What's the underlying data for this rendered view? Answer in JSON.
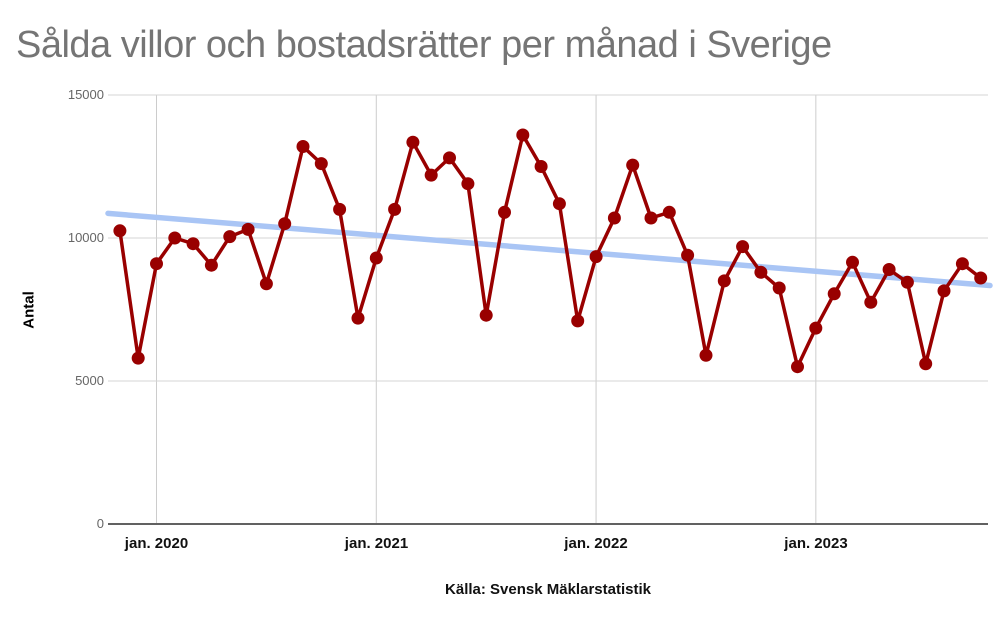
{
  "chart_data": {
    "type": "line",
    "title": "Sålda villor och bostadsrätter per månad i Sverige",
    "title_color": "#757575",
    "ylabel": "Antal",
    "caption": "Källa: Svensk Mäklarstatistik",
    "ylim": [
      0,
      15000
    ],
    "y_ticks": [
      15000,
      10000,
      5000,
      0
    ],
    "x_ticks": [
      {
        "label": "jan. 2020",
        "month_index": 2
      },
      {
        "label": "jan. 2021",
        "month_index": 14
      },
      {
        "label": "jan. 2022",
        "month_index": 26
      },
      {
        "label": "jan. 2023",
        "month_index": 38
      }
    ],
    "months": [
      "2019-11",
      "2019-12",
      "2020-01",
      "2020-02",
      "2020-03",
      "2020-04",
      "2020-05",
      "2020-06",
      "2020-07",
      "2020-08",
      "2020-09",
      "2020-10",
      "2020-11",
      "2020-12",
      "2021-01",
      "2021-02",
      "2021-03",
      "2021-04",
      "2021-05",
      "2021-06",
      "2021-07",
      "2021-08",
      "2021-09",
      "2021-10",
      "2021-11",
      "2021-12",
      "2022-01",
      "2022-02",
      "2022-03",
      "2022-04",
      "2022-05",
      "2022-06",
      "2022-07",
      "2022-08",
      "2022-09",
      "2022-10",
      "2022-11",
      "2022-12",
      "2023-01",
      "2023-02",
      "2023-03",
      "2023-04",
      "2023-05",
      "2023-06",
      "2023-07",
      "2023-08",
      "2023-09",
      "2023-10"
    ],
    "values": [
      10250,
      5800,
      9100,
      10000,
      9800,
      9050,
      10050,
      10300,
      8400,
      10500,
      13200,
      12600,
      11000,
      7200,
      9300,
      11000,
      13350,
      12200,
      12800,
      11900,
      7300,
      10900,
      13600,
      12500,
      11200,
      7100,
      9350,
      10700,
      12550,
      10700,
      10900,
      9400,
      5900,
      8500,
      9700,
      8800,
      8250,
      5500,
      6850,
      8050,
      9150,
      7750,
      8900,
      8450,
      5600,
      8150,
      9100,
      8600
    ],
    "series_color": "#990000",
    "marker": "circle",
    "trendline": {
      "color": "#a9c5f5",
      "start_value": 10860,
      "end_value": 8340
    },
    "grid": true,
    "legend": "none"
  }
}
